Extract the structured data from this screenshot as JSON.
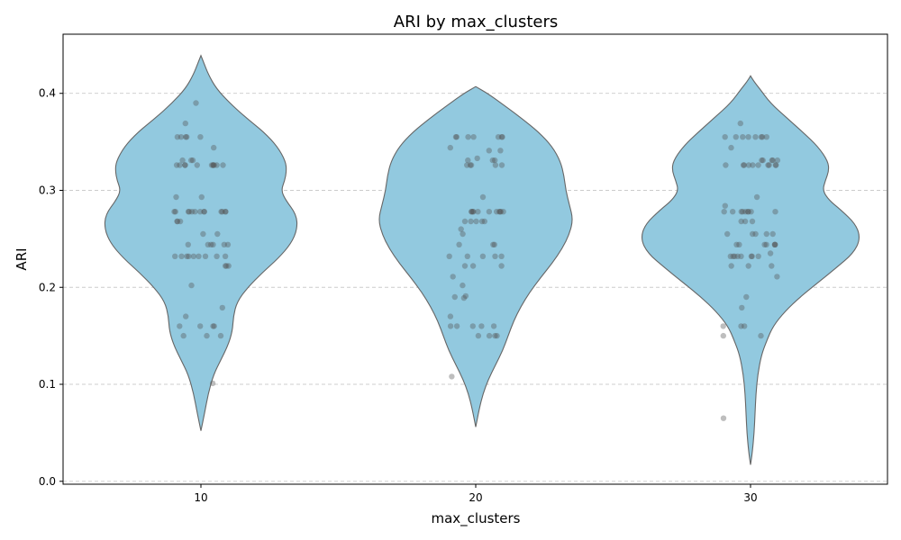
{
  "chart_data": {
    "type": "violin",
    "title": "ARI by max_clusters",
    "xlabel": "max_clusters",
    "ylabel": "ARI",
    "categories": [
      "10",
      "20",
      "30"
    ],
    "ylim": [
      -0.003,
      0.461
    ],
    "yticks": [
      0.0,
      0.1,
      0.2,
      0.3,
      0.4
    ],
    "ytick_labels": [
      "0.0",
      "0.1",
      "0.2",
      "0.3",
      "0.4"
    ],
    "grid": "horizontal dashed",
    "colors": {
      "violin_fill": "#92c9df",
      "violin_edge": "#666666",
      "point": "#555555",
      "grid": "#cccccc"
    },
    "violins": [
      {
        "category": "10",
        "profile": [
          [
            0.052,
            0.0
          ],
          [
            0.07,
            0.004
          ],
          [
            0.09,
            0.008
          ],
          [
            0.11,
            0.014
          ],
          [
            0.125,
            0.022
          ],
          [
            0.14,
            0.03
          ],
          [
            0.155,
            0.035
          ],
          [
            0.17,
            0.036
          ],
          [
            0.185,
            0.04
          ],
          [
            0.2,
            0.052
          ],
          [
            0.215,
            0.068
          ],
          [
            0.23,
            0.086
          ],
          [
            0.245,
            0.1
          ],
          [
            0.26,
            0.107
          ],
          [
            0.275,
            0.106
          ],
          [
            0.29,
            0.094
          ],
          [
            0.3,
            0.089
          ],
          [
            0.31,
            0.093
          ],
          [
            0.32,
            0.095
          ],
          [
            0.33,
            0.094
          ],
          [
            0.345,
            0.085
          ],
          [
            0.36,
            0.07
          ],
          [
            0.375,
            0.05
          ],
          [
            0.39,
            0.032
          ],
          [
            0.405,
            0.017
          ],
          [
            0.42,
            0.008
          ],
          [
            0.432,
            0.003
          ],
          [
            0.439,
            0.0
          ]
        ],
        "points": [
          0.39,
          0.369,
          0.355,
          0.355,
          0.355,
          0.355,
          0.355,
          0.344,
          0.331,
          0.331,
          0.331,
          0.326,
          0.326,
          0.326,
          0.326,
          0.326,
          0.326,
          0.326,
          0.326,
          0.326,
          0.326,
          0.326,
          0.293,
          0.293,
          0.278,
          0.278,
          0.278,
          0.278,
          0.278,
          0.278,
          0.278,
          0.278,
          0.278,
          0.278,
          0.278,
          0.278,
          0.278,
          0.268,
          0.268,
          0.268,
          0.255,
          0.255,
          0.244,
          0.244,
          0.244,
          0.244,
          0.244,
          0.244,
          0.232,
          0.232,
          0.232,
          0.232,
          0.232,
          0.232,
          0.232,
          0.232,
          0.232,
          0.222,
          0.222,
          0.222,
          0.202,
          0.179,
          0.17,
          0.16,
          0.16,
          0.16,
          0.16,
          0.15,
          0.15,
          0.15,
          0.101
        ]
      },
      {
        "category": "20",
        "profile": [
          [
            0.056,
            0.0
          ],
          [
            0.075,
            0.004
          ],
          [
            0.09,
            0.008
          ],
          [
            0.105,
            0.014
          ],
          [
            0.12,
            0.022
          ],
          [
            0.135,
            0.03
          ],
          [
            0.15,
            0.036
          ],
          [
            0.165,
            0.042
          ],
          [
            0.18,
            0.05
          ],
          [
            0.195,
            0.06
          ],
          [
            0.21,
            0.072
          ],
          [
            0.225,
            0.085
          ],
          [
            0.24,
            0.096
          ],
          [
            0.255,
            0.104
          ],
          [
            0.27,
            0.108
          ],
          [
            0.285,
            0.104
          ],
          [
            0.3,
            0.1
          ],
          [
            0.315,
            0.098
          ],
          [
            0.33,
            0.094
          ],
          [
            0.345,
            0.085
          ],
          [
            0.36,
            0.07
          ],
          [
            0.375,
            0.05
          ],
          [
            0.39,
            0.028
          ],
          [
            0.4,
            0.013
          ],
          [
            0.407,
            0.0
          ]
        ],
        "points": [
          0.355,
          0.355,
          0.355,
          0.355,
          0.355,
          0.355,
          0.355,
          0.344,
          0.341,
          0.341,
          0.333,
          0.331,
          0.331,
          0.331,
          0.326,
          0.326,
          0.326,
          0.326,
          0.326,
          0.293,
          0.278,
          0.278,
          0.278,
          0.278,
          0.278,
          0.278,
          0.278,
          0.278,
          0.278,
          0.278,
          0.278,
          0.268,
          0.268,
          0.268,
          0.268,
          0.268,
          0.26,
          0.255,
          0.244,
          0.244,
          0.244,
          0.232,
          0.232,
          0.232,
          0.232,
          0.232,
          0.222,
          0.222,
          0.222,
          0.211,
          0.202,
          0.191,
          0.19,
          0.189,
          0.17,
          0.16,
          0.16,
          0.16,
          0.16,
          0.16,
          0.15,
          0.15,
          0.15,
          0.15,
          0.108
        ]
      },
      {
        "category": "30",
        "profile": [
          [
            0.017,
            0.0
          ],
          [
            0.03,
            0.002
          ],
          [
            0.05,
            0.004
          ],
          [
            0.07,
            0.005
          ],
          [
            0.09,
            0.006
          ],
          [
            0.11,
            0.008
          ],
          [
            0.13,
            0.012
          ],
          [
            0.145,
            0.018
          ],
          [
            0.16,
            0.025
          ],
          [
            0.175,
            0.038
          ],
          [
            0.19,
            0.055
          ],
          [
            0.205,
            0.075
          ],
          [
            0.22,
            0.095
          ],
          [
            0.235,
            0.114
          ],
          [
            0.25,
            0.122
          ],
          [
            0.265,
            0.117
          ],
          [
            0.28,
            0.1
          ],
          [
            0.29,
            0.087
          ],
          [
            0.3,
            0.08
          ],
          [
            0.31,
            0.083
          ],
          [
            0.32,
            0.087
          ],
          [
            0.33,
            0.086
          ],
          [
            0.345,
            0.075
          ],
          [
            0.36,
            0.058
          ],
          [
            0.375,
            0.04
          ],
          [
            0.39,
            0.022
          ],
          [
            0.405,
            0.01
          ],
          [
            0.412,
            0.004
          ],
          [
            0.418,
            0.0
          ]
        ],
        "points": [
          0.369,
          0.355,
          0.355,
          0.355,
          0.355,
          0.355,
          0.355,
          0.355,
          0.355,
          0.344,
          0.331,
          0.331,
          0.331,
          0.331,
          0.331,
          0.326,
          0.326,
          0.326,
          0.326,
          0.326,
          0.326,
          0.326,
          0.326,
          0.326,
          0.326,
          0.293,
          0.284,
          0.278,
          0.278,
          0.278,
          0.278,
          0.278,
          0.278,
          0.278,
          0.278,
          0.278,
          0.268,
          0.268,
          0.268,
          0.255,
          0.255,
          0.255,
          0.255,
          0.255,
          0.244,
          0.244,
          0.244,
          0.244,
          0.244,
          0.244,
          0.244,
          0.235,
          0.232,
          0.232,
          0.232,
          0.232,
          0.232,
          0.232,
          0.232,
          0.232,
          0.222,
          0.222,
          0.222,
          0.211,
          0.19,
          0.179,
          0.16,
          0.16,
          0.16,
          0.15,
          0.15,
          0.065
        ]
      }
    ]
  }
}
